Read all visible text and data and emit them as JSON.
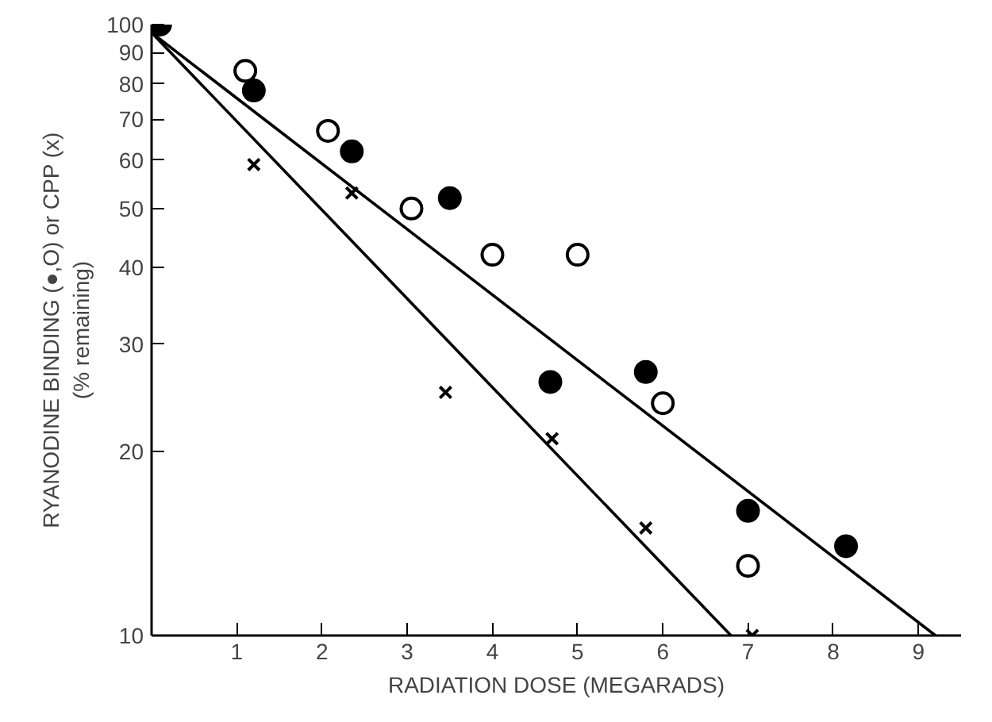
{
  "chart_data": {
    "type": "scatter",
    "xlabel": "RADIATION DOSE (MEGARADS)",
    "ylabel": "RYANODINE BINDING (●,O) or CPP (x)\n(% remaining)",
    "log": "y",
    "grid": false,
    "xlim": [
      0,
      9.5
    ],
    "ylim": [
      10,
      100
    ],
    "xticks": [
      1,
      2,
      3,
      4,
      5,
      6,
      7,
      8,
      9
    ],
    "yticks": [
      10,
      20,
      30,
      40,
      50,
      60,
      70,
      80,
      90,
      100
    ],
    "series": [
      {
        "marker": "circle",
        "color": "#000000",
        "x": [
          0.1,
          1.2,
          2.35,
          3.5,
          4.68,
          5.8,
          7.0,
          8.15
        ],
        "values": [
          100,
          78,
          62,
          52,
          26,
          27,
          16,
          14
        ]
      },
      {
        "marker": "circle",
        "color": "#ffffff",
        "x": [
          1.1,
          2.07,
          3.05,
          4.0,
          5.0,
          6.0,
          7.0
        ],
        "values": [
          84,
          67,
          50,
          42,
          42,
          24,
          13
        ]
      },
      {
        "marker": "cross",
        "color": "#000000",
        "x": [
          1.2,
          2.35,
          3.45,
          4.7,
          5.8,
          7.05
        ],
        "values": [
          59,
          53,
          25,
          21,
          15,
          10
        ]
      },
      {
        "type": "line",
        "color": "#000000",
        "x": [
          0,
          9.2
        ],
        "values": [
          97,
          10
        ]
      },
      {
        "type": "line",
        "color": "#000000",
        "x": [
          0,
          6.8
        ],
        "values": [
          97,
          10
        ]
      }
    ]
  }
}
